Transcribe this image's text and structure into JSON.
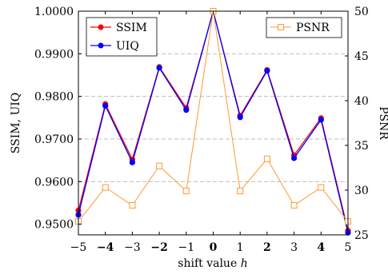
{
  "chart_data": {
    "type": "line",
    "xlabel": "shift value h",
    "xlabel_main": "shift value ",
    "xlabel_var": "h",
    "x": [
      -5,
      -4,
      -3,
      -2,
      -1,
      0,
      1,
      2,
      3,
      4,
      5
    ],
    "x_tick_labels": [
      "−5",
      "−4",
      "−3",
      "−2",
      "−1",
      "0",
      "1",
      "2",
      "3",
      "4",
      "5"
    ],
    "x_bold_ticks": [
      -4,
      -2,
      0,
      2,
      4
    ],
    "xlim": [
      -5,
      5
    ],
    "y_left": {
      "label": "SSIM, UIQ",
      "lim": [
        0.9475,
        1.0
      ],
      "ticks": [
        0.95,
        0.96,
        0.97,
        0.98,
        0.99,
        1.0
      ],
      "tick_labels": [
        "0.9500",
        "0.9600",
        "0.9700",
        "0.9800",
        "0.9900",
        "1.0000"
      ]
    },
    "y_right": {
      "label": "PSNR",
      "lim": [
        25,
        50
      ],
      "ticks": [
        25,
        30,
        35,
        40,
        45,
        50
      ],
      "tick_labels": [
        "25",
        "30",
        "35",
        "40",
        "45",
        "50"
      ]
    },
    "grid": "horizontal-dashed",
    "series": [
      {
        "name": "SSIM",
        "axis": "left",
        "color": "#ff0000",
        "marker": "circle",
        "values": [
          0.9532,
          0.9782,
          0.9652,
          0.9869,
          0.9773,
          1.0,
          0.9755,
          0.9862,
          0.9662,
          0.9749,
          0.9485
        ]
      },
      {
        "name": "UIQ",
        "axis": "left",
        "color": "#0000ff",
        "marker": "circle",
        "values": [
          0.9522,
          0.9778,
          0.9645,
          0.9867,
          0.9768,
          1.0,
          0.9751,
          0.986,
          0.9655,
          0.9745,
          0.948
        ]
      },
      {
        "name": "PSNR",
        "axis": "right",
        "color": "#ff9933",
        "marker": "square-open",
        "values": [
          26.5,
          30.3,
          28.3,
          32.7,
          29.9,
          50.0,
          29.9,
          33.5,
          28.3,
          30.3,
          26.5
        ]
      }
    ],
    "legends": [
      {
        "placement": "top-left",
        "entries": [
          "SSIM",
          "UIQ"
        ]
      },
      {
        "placement": "top-right",
        "entries": [
          "PSNR"
        ]
      }
    ]
  }
}
